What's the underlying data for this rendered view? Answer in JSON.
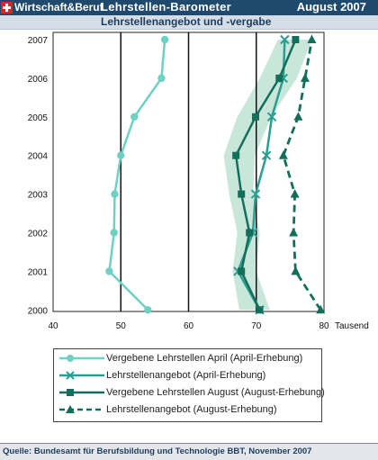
{
  "header": {
    "brand": "Wirtschaft&Beruf",
    "title": "Lehrstellen-Barometer",
    "period": "August 2007",
    "subtitle": "Lehrstellenangebot  und -vergabe"
  },
  "colors": {
    "header_bg": "#1f4a6d",
    "light_series": "#6fd1c3",
    "mid_series": "#2a9e91",
    "dark_series": "#136e5a",
    "band": "#c9e6da"
  },
  "chart_data": {
    "type": "line",
    "orientation": "horizontal",
    "categories": [
      "2000",
      "2001",
      "2002",
      "2003",
      "2004",
      "2005",
      "2006",
      "2007"
    ],
    "x_unit": "Tausend",
    "xlim": [
      40,
      80
    ],
    "x_ticks": [
      "40",
      "50",
      "60",
      "70",
      "80"
    ],
    "gridlines_x": [
      50,
      60,
      70
    ],
    "series": [
      {
        "name": "Vergebene Lehrstellen April (April-Erhebung)",
        "style": "solid",
        "marker": "circle",
        "color": "#6fd1c3",
        "values": [
          54,
          48.3,
          49,
          49.1,
          50,
          52,
          56,
          56.5
        ]
      },
      {
        "name": "Lehrstellenangebot (April-Erhebung)",
        "style": "solid",
        "marker": "x",
        "color": "#2a9e91",
        "values": [
          70.5,
          67.3,
          69.5,
          69.9,
          71.5,
          72.3,
          74,
          74.2
        ]
      },
      {
        "name": "Vergebene Lehrstellen August (August-Erhebung)",
        "style": "solid",
        "marker": "square",
        "color": "#136e5a",
        "values": [
          70.5,
          67.8,
          69,
          67.8,
          67,
          69.9,
          73.4,
          75.8
        ],
        "band_lower": [
          67.5,
          66.5,
          67.2,
          66,
          65.2,
          67.2,
          70.5,
          73.2
        ],
        "band_upper": [
          72,
          70,
          70.5,
          69.5,
          69.8,
          72.2,
          76,
          78.2
        ]
      },
      {
        "name": "Lehrstellenangebot (August-Erhebung)",
        "style": "dashed",
        "marker": "triangle",
        "color": "#136e5a",
        "values": [
          79.5,
          75.8,
          75.5,
          75.7,
          74,
          76.2,
          77.2,
          78.2
        ]
      }
    ],
    "legend_position": "bottom"
  },
  "source": "Quelle: Bundesamt für Berufsbildung und Technologie BBT, November 2007"
}
